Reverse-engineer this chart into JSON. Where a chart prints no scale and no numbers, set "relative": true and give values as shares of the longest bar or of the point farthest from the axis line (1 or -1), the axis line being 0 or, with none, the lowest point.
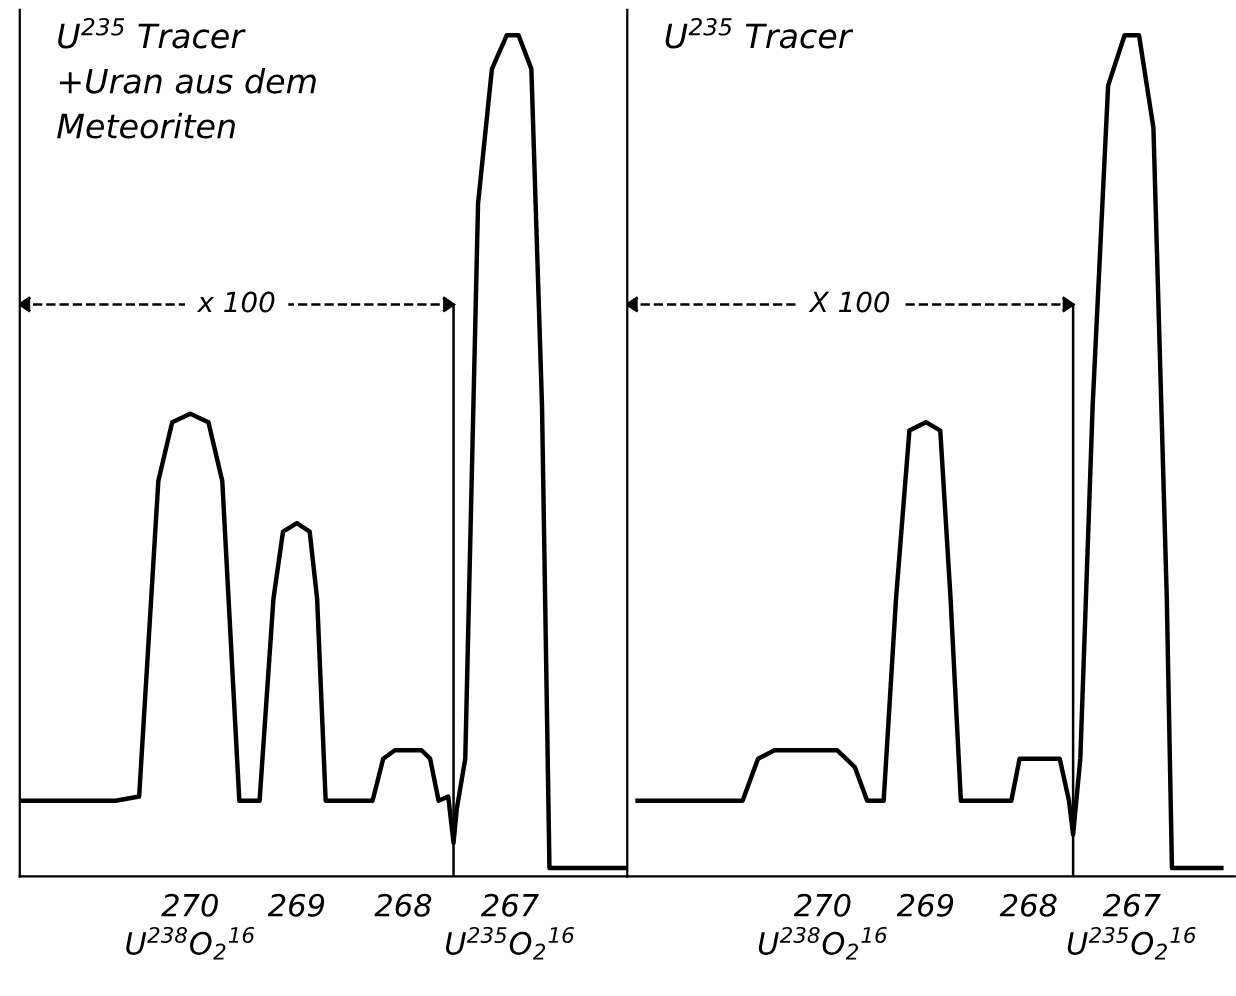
{
  "chart_data": [
    {
      "type": "line",
      "title": "U$^{235}$ Tracer\n+Uran aus dem\nMeteoriten",
      "relative": true,
      "xlim": [
        271.6,
        265.9
      ],
      "xticks": [
        {
          "value": 270,
          "label": "270\nU$^{238}$O$_{2}$$^{16}$"
        },
        {
          "value": 269,
          "label": "269\n "
        },
        {
          "value": 268,
          "label": "268\n "
        },
        {
          "value": 267,
          "label": "267\nU$^{235}$O$_{2}$$^{16}$"
        }
      ],
      "series": [
        {
          "color": "#000000",
          "x": [
            271.57,
            270.7,
            270.48,
            270.3,
            270.17,
            270,
            269.83,
            269.7,
            269.54,
            269.35,
            269.22,
            269.13,
            269,
            268.88,
            268.81,
            268.73,
            268.29,
            268.19,
            268.08,
            267.83,
            267.75,
            267.67,
            267.58,
            267.53,
            267.5,
            267.42,
            267.3,
            267.17,
            267.03,
            266.92,
            266.8,
            266.7,
            266.63,
            265.92
          ],
          "values": [
            0.09,
            0.09,
            0.095,
            0.47,
            0.54,
            0.55,
            0.54,
            0.47,
            0.09,
            0.09,
            0.33,
            0.41,
            0.42,
            0.41,
            0.33,
            0.09,
            0.09,
            0.14,
            0.15,
            0.15,
            0.14,
            0.09,
            0.095,
            0.04,
            0.08,
            0.14,
            0.8,
            0.96,
            1.0,
            1.0,
            0.96,
            0.56,
            0.01,
            0.01
          ]
        }
      ],
      "ref_lines": [
        {
          "axis": "x",
          "value": 267.53
        }
      ],
      "annotations": [
        "x 100"
      ]
    },
    {
      "type": "line",
      "title": "U$^{235}$ Tracer",
      "relative": true,
      "xlim": [
        271.9,
        266.0
      ],
      "xticks": [
        {
          "value": 270,
          "label": "270\nU$^{238}$O$_{2}$$^{16}$"
        },
        {
          "value": 269,
          "label": "269\n "
        },
        {
          "value": 268,
          "label": "268\n "
        },
        {
          "value": 267,
          "label": "267\nU$^{235}$O$_{2}$$^{16}$"
        }
      ],
      "series": [
        {
          "color": "#000000",
          "x": [
            271.8,
            270.78,
            270.63,
            270.47,
            269.86,
            269.69,
            269.57,
            269.41,
            269.29,
            269.16,
            269,
            268.86,
            268.76,
            268.66,
            268.17,
            268.09,
            267.7,
            267.61,
            267.57,
            267.5,
            267.38,
            267.23,
            267.07,
            266.93,
            266.79,
            266.66,
            266.61,
            266.13
          ],
          "values": [
            0.09,
            0.09,
            0.14,
            0.15,
            0.15,
            0.13,
            0.09,
            0.09,
            0.33,
            0.53,
            0.54,
            0.53,
            0.33,
            0.09,
            0.09,
            0.14,
            0.14,
            0.09,
            0.05,
            0.14,
            0.56,
            0.94,
            1.0,
            1.0,
            0.89,
            0.33,
            0.01,
            0.01
          ]
        }
      ],
      "ref_lines": [
        {
          "axis": "x",
          "value": 267.57
        }
      ],
      "annotations": [
        "X 100"
      ]
    }
  ]
}
